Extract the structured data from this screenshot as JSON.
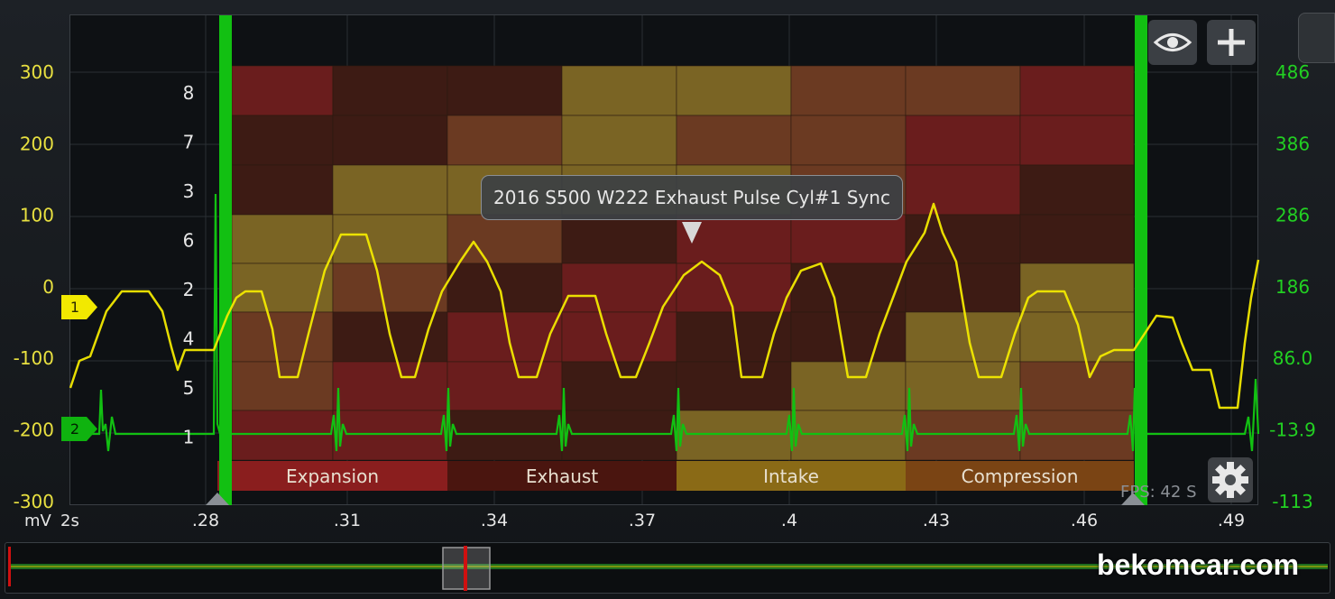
{
  "title": "2016 S500 W222 Exhaust Pulse Cyl#1 Sync",
  "left_axis": {
    "unit": "mV",
    "ticks": [
      "300",
      "200",
      "100",
      "0",
      "-100",
      "-200",
      "-300"
    ]
  },
  "right_axis": {
    "ticks": [
      "486",
      "386",
      "286",
      "186",
      "86.0",
      "-13.9",
      "-113"
    ]
  },
  "x_axis": {
    "span_label": "2s",
    "ticks": [
      ".28",
      ".31",
      ".34",
      ".37",
      ".4",
      ".43",
      ".46",
      ".49"
    ]
  },
  "cylinder_order": [
    "8",
    "7",
    "3",
    "6",
    "2",
    "4",
    "5",
    "1"
  ],
  "strokes": [
    "Expansion",
    "Exhaust",
    "Intake",
    "Compression"
  ],
  "channels": [
    {
      "label": "1",
      "color": "#f2e900"
    },
    {
      "label": "2",
      "color": "#12c012"
    }
  ],
  "fps_text": "FPS: 42",
  "status_letter": "S",
  "watermark": "bekomcar.com",
  "icons": {
    "view": "eye-icon",
    "add": "plus-icon",
    "settings": "gear-icon"
  },
  "heatmap_colors": {
    "red": "#6a1d1d",
    "dark": "#3d1b14",
    "olive": "#7a6424",
    "brown": "#6b3a22",
    "stroke_expansion": "#8a1e1e",
    "stroke_exhaust": "#4a150f",
    "stroke_intake": "#8a6a16",
    "stroke_compression": "#7a4414"
  }
}
